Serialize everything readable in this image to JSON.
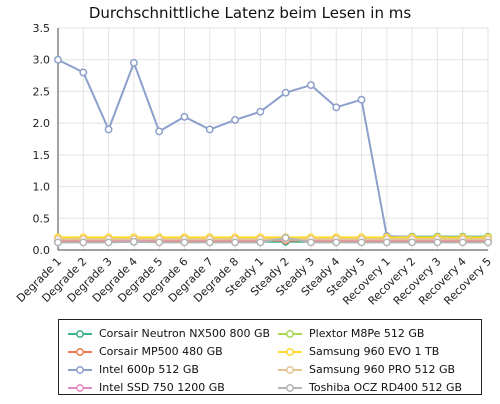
{
  "chart_data": {
    "type": "line",
    "title": "Durchschnittliche Latenz beim Lesen in ms",
    "xlabel": "",
    "ylabel": "",
    "ylim": [
      0,
      3.5
    ],
    "yticks": [
      "0.0",
      "0.5",
      "1.0",
      "1.5",
      "2.0",
      "2.5",
      "3.0",
      "3.5"
    ],
    "grid": true,
    "legend_placement": "bottom",
    "categories": [
      "Degrade 1",
      "Degrade 2",
      "Degrade 3",
      "Degrade 4",
      "Degrade 5",
      "Degrade 6",
      "Degrade 7",
      "Degrade 8",
      "Steady 1",
      "Steady 2",
      "Steady 3",
      "Steady 4",
      "Steady 5",
      "Recovery 1",
      "Recovery 2",
      "Recovery 3",
      "Recovery 4",
      "Recovery 5"
    ],
    "series": [
      {
        "name": "Corsair Neutron NX500 800 GB",
        "color": "#3cb38a",
        "values": [
          0.13,
          0.13,
          0.13,
          0.13,
          0.13,
          0.13,
          0.13,
          0.13,
          0.13,
          0.13,
          0.13,
          0.13,
          0.13,
          0.21,
          0.21,
          0.21,
          0.21,
          0.21
        ]
      },
      {
        "name": "Corsair MP500 480 GB",
        "color": "#f07b4a",
        "values": [
          0.15,
          0.15,
          0.15,
          0.15,
          0.15,
          0.15,
          0.15,
          0.15,
          0.15,
          0.15,
          0.15,
          0.15,
          0.15,
          0.15,
          0.15,
          0.15,
          0.15,
          0.15
        ]
      },
      {
        "name": "Intel 600p 512 GB",
        "color": "#8da0cb",
        "values": [
          3.0,
          2.8,
          1.9,
          2.95,
          1.87,
          2.1,
          1.9,
          2.05,
          2.18,
          2.48,
          2.6,
          2.25,
          2.37,
          0.22,
          0.2,
          0.2,
          0.2,
          0.2
        ]
      },
      {
        "name": "Intel SSD 750 1200 GB",
        "color": "#e78ac3",
        "values": [
          0.16,
          0.16,
          0.16,
          0.16,
          0.16,
          0.16,
          0.16,
          0.16,
          0.16,
          0.16,
          0.16,
          0.16,
          0.16,
          0.16,
          0.16,
          0.16,
          0.16,
          0.16
        ]
      },
      {
        "name": "Plextor M8Pe 512 GB",
        "color": "#a6d854",
        "values": [
          0.18,
          0.18,
          0.18,
          0.18,
          0.18,
          0.18,
          0.18,
          0.18,
          0.18,
          0.18,
          0.18,
          0.18,
          0.18,
          0.18,
          0.18,
          0.18,
          0.18,
          0.18
        ]
      },
      {
        "name": "Samsung 960 EVO 1 TB",
        "color": "#ffd92f",
        "values": [
          0.2,
          0.2,
          0.2,
          0.2,
          0.2,
          0.2,
          0.2,
          0.2,
          0.2,
          0.2,
          0.2,
          0.2,
          0.2,
          0.2,
          0.2,
          0.2,
          0.2,
          0.2
        ]
      },
      {
        "name": "Samsung 960 PRO 512 GB",
        "color": "#e5c494",
        "values": [
          0.17,
          0.17,
          0.17,
          0.17,
          0.17,
          0.17,
          0.17,
          0.17,
          0.17,
          0.17,
          0.17,
          0.17,
          0.17,
          0.17,
          0.17,
          0.17,
          0.17,
          0.17
        ]
      },
      {
        "name": "Toshiba OCZ RD400 512 GB",
        "color": "#b3b3b3",
        "values": [
          0.12,
          0.12,
          0.12,
          0.13,
          0.12,
          0.12,
          0.12,
          0.12,
          0.12,
          0.19,
          0.12,
          0.12,
          0.12,
          0.12,
          0.12,
          0.12,
          0.12,
          0.12
        ]
      }
    ]
  }
}
